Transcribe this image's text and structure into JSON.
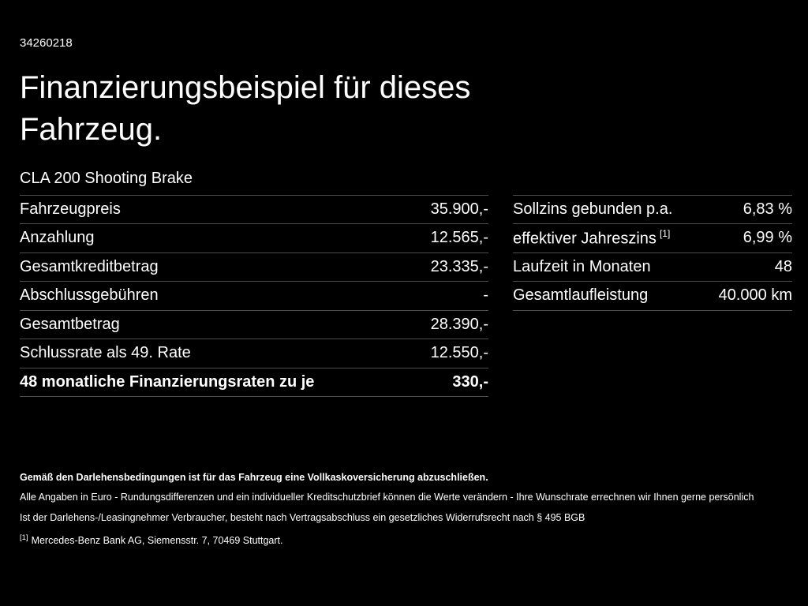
{
  "page": {
    "doc_id": "34260218",
    "title": "Finanzierungsbeispiel für dieses Fahrzeug.",
    "vehicle": "CLA 200 Shooting Brake"
  },
  "left_table": {
    "rows": [
      {
        "label": "Fahrzeugpreis",
        "value": "35.900,-"
      },
      {
        "label": "Anzahlung",
        "value": "12.565,-"
      },
      {
        "label": "Gesamtkreditbetrag",
        "value": "23.335,-"
      },
      {
        "label": "Abschlussgebühren",
        "value": "-"
      },
      {
        "label": "Gesamtbetrag",
        "value": "28.390,-"
      },
      {
        "label": "Schlussrate als 49. Rate",
        "value": "12.550,-"
      },
      {
        "label": "48 monatliche Finanzierungsraten zu je",
        "value": "330,-"
      }
    ]
  },
  "right_table": {
    "rows": [
      {
        "label": "Sollzins gebunden p.a.",
        "value": "6,83 %"
      },
      {
        "label": "effektiver Jahreszins",
        "footnote": "[1]",
        "value": "6,99 %"
      },
      {
        "label": "Laufzeit in Monaten",
        "value": "48"
      },
      {
        "label": "Gesamtlaufleistung",
        "value": "40.000 km"
      }
    ]
  },
  "footer": {
    "insurance_note": "Gemäß den Darlehensbedingungen ist für das Fahrzeug eine Vollkaskoversicherung abzuschließen.",
    "note1": "Alle Angaben in Euro - Rundungsdifferenzen und ein individueller Kreditschutzbrief können die Werte verändern - Ihre Wunschrate errechnen wir Ihnen gerne persönlich",
    "note2": "Ist der Darlehens-/Leasingnehmer Verbraucher, besteht nach Vertragsabschluss ein gesetzliches Widerrufsrecht nach § 495 BGB",
    "footnote_marker": "[1]",
    "footnote_text": "Mercedes-Benz Bank AG, Siemensstr. 7, 70469 Stuttgart."
  },
  "colors": {
    "background": "#000000",
    "text": "#ffffff",
    "divider": "#4d4d4d"
  }
}
